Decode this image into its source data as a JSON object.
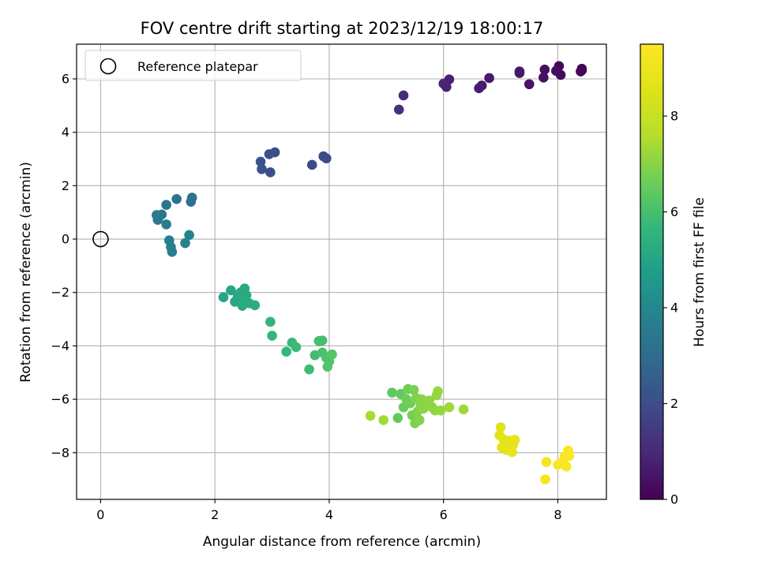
{
  "chart_data": {
    "type": "scatter",
    "title": "FOV centre drift starting at 2023/12/19 18:00:17",
    "xlabel": "Angular distance from reference (arcmin)",
    "ylabel": "Rotation from reference (arcmin)",
    "xlim": [
      -0.42,
      8.85
    ],
    "ylim": [
      -9.75,
      7.3
    ],
    "xticks": [
      0,
      2,
      4,
      6,
      8
    ],
    "yticks": [
      -8,
      -6,
      -4,
      -2,
      0,
      2,
      4,
      6
    ],
    "grid": true,
    "legend": {
      "position": "top-left",
      "entries": [
        "Reference platepar"
      ]
    },
    "reference_point": {
      "x": 0,
      "y": 0,
      "marker": "open-circle"
    },
    "colorbar": {
      "label": "Hours from first FF file",
      "range": [
        0,
        9.5
      ],
      "ticks": [
        0,
        2,
        4,
        6,
        8
      ],
      "colormap": "viridis"
    },
    "points": [
      {
        "x": 8.42,
        "y": 6.32,
        "t": 0.05
      },
      {
        "x": 8.42,
        "y": 6.38,
        "t": 0.1
      },
      {
        "x": 8.4,
        "y": 6.28,
        "t": 0.15
      },
      {
        "x": 8.02,
        "y": 6.48,
        "t": 0.2
      },
      {
        "x": 8.05,
        "y": 6.15,
        "t": 0.25
      },
      {
        "x": 7.97,
        "y": 6.3,
        "t": 0.3
      },
      {
        "x": 7.77,
        "y": 6.35,
        "t": 0.35
      },
      {
        "x": 7.75,
        "y": 6.05,
        "t": 0.4
      },
      {
        "x": 7.5,
        "y": 5.8,
        "t": 0.45
      },
      {
        "x": 7.33,
        "y": 6.22,
        "t": 0.5
      },
      {
        "x": 7.33,
        "y": 6.28,
        "t": 0.55
      },
      {
        "x": 6.8,
        "y": 6.03,
        "t": 0.6
      },
      {
        "x": 6.67,
        "y": 5.75,
        "t": 0.65
      },
      {
        "x": 6.62,
        "y": 5.65,
        "t": 0.7
      },
      {
        "x": 6.1,
        "y": 5.98,
        "t": 0.78
      },
      {
        "x": 6.05,
        "y": 5.7,
        "t": 0.85
      },
      {
        "x": 6.0,
        "y": 5.82,
        "t": 0.9
      },
      {
        "x": 5.3,
        "y": 5.38,
        "t": 1.1
      },
      {
        "x": 5.22,
        "y": 4.85,
        "t": 1.2
      },
      {
        "x": 3.95,
        "y": 3.02,
        "t": 1.85
      },
      {
        "x": 3.9,
        "y": 3.1,
        "t": 1.9
      },
      {
        "x": 3.7,
        "y": 2.78,
        "t": 1.95
      },
      {
        "x": 3.05,
        "y": 3.25,
        "t": 2.0
      },
      {
        "x": 2.95,
        "y": 3.18,
        "t": 2.05
      },
      {
        "x": 2.97,
        "y": 2.5,
        "t": 2.1
      },
      {
        "x": 2.82,
        "y": 2.62,
        "t": 2.15
      },
      {
        "x": 2.8,
        "y": 2.9,
        "t": 2.2
      },
      {
        "x": 1.6,
        "y": 1.55,
        "t": 3.2
      },
      {
        "x": 1.58,
        "y": 1.4,
        "t": 3.25
      },
      {
        "x": 1.33,
        "y": 1.5,
        "t": 3.3
      },
      {
        "x": 1.15,
        "y": 1.28,
        "t": 3.35
      },
      {
        "x": 1.07,
        "y": 0.92,
        "t": 3.4
      },
      {
        "x": 0.98,
        "y": 0.9,
        "t": 3.45
      },
      {
        "x": 1.0,
        "y": 0.72,
        "t": 3.5
      },
      {
        "x": 1.15,
        "y": 0.55,
        "t": 3.55
      },
      {
        "x": 1.2,
        "y": -0.05,
        "t": 3.6
      },
      {
        "x": 1.23,
        "y": -0.3,
        "t": 3.65
      },
      {
        "x": 1.25,
        "y": -0.48,
        "t": 3.7
      },
      {
        "x": 1.48,
        "y": -0.15,
        "t": 3.75
      },
      {
        "x": 1.55,
        "y": 0.15,
        "t": 3.8
      },
      {
        "x": 2.15,
        "y": -2.18,
        "t": 5.0
      },
      {
        "x": 2.28,
        "y": -1.92,
        "t": 5.05
      },
      {
        "x": 2.35,
        "y": -2.35,
        "t": 5.1
      },
      {
        "x": 2.4,
        "y": -2.15,
        "t": 5.12
      },
      {
        "x": 2.45,
        "y": -2.0,
        "t": 5.15
      },
      {
        "x": 2.5,
        "y": -2.3,
        "t": 5.18
      },
      {
        "x": 2.52,
        "y": -1.85,
        "t": 5.2
      },
      {
        "x": 2.55,
        "y": -2.1,
        "t": 5.22
      },
      {
        "x": 2.48,
        "y": -2.5,
        "t": 5.25
      },
      {
        "x": 2.6,
        "y": -2.4,
        "t": 5.28
      },
      {
        "x": 2.7,
        "y": -2.48,
        "t": 5.3
      },
      {
        "x": 2.97,
        "y": -3.1,
        "t": 5.6
      },
      {
        "x": 3.0,
        "y": -3.62,
        "t": 5.65
      },
      {
        "x": 3.25,
        "y": -4.22,
        "t": 5.7
      },
      {
        "x": 3.35,
        "y": -3.88,
        "t": 5.75
      },
      {
        "x": 3.42,
        "y": -4.05,
        "t": 5.8
      },
      {
        "x": 3.65,
        "y": -4.88,
        "t": 5.85
      },
      {
        "x": 3.75,
        "y": -4.35,
        "t": 5.9
      },
      {
        "x": 3.82,
        "y": -3.82,
        "t": 5.95
      },
      {
        "x": 3.88,
        "y": -3.8,
        "t": 6.0
      },
      {
        "x": 3.88,
        "y": -4.25,
        "t": 6.05
      },
      {
        "x": 3.95,
        "y": -4.45,
        "t": 6.1
      },
      {
        "x": 4.0,
        "y": -4.58,
        "t": 6.15
      },
      {
        "x": 3.97,
        "y": -4.78,
        "t": 6.2
      },
      {
        "x": 4.05,
        "y": -4.32,
        "t": 6.25
      },
      {
        "x": 5.1,
        "y": -5.75,
        "t": 6.4
      },
      {
        "x": 5.2,
        "y": -6.7,
        "t": 6.45
      },
      {
        "x": 5.25,
        "y": -5.8,
        "t": 6.5
      },
      {
        "x": 5.3,
        "y": -6.3,
        "t": 6.55
      },
      {
        "x": 5.35,
        "y": -6.0,
        "t": 6.6
      },
      {
        "x": 5.38,
        "y": -5.62,
        "t": 6.65
      },
      {
        "x": 5.42,
        "y": -6.15,
        "t": 6.7
      },
      {
        "x": 5.45,
        "y": -6.6,
        "t": 6.75
      },
      {
        "x": 5.48,
        "y": -5.65,
        "t": 6.8
      },
      {
        "x": 5.5,
        "y": -6.9,
        "t": 6.85
      },
      {
        "x": 5.52,
        "y": -5.95,
        "t": 6.88
      },
      {
        "x": 5.55,
        "y": -6.45,
        "t": 6.9
      },
      {
        "x": 5.58,
        "y": -6.78,
        "t": 6.93
      },
      {
        "x": 5.6,
        "y": -6.2,
        "t": 6.96
      },
      {
        "x": 5.62,
        "y": -6.0,
        "t": 7.0
      },
      {
        "x": 5.65,
        "y": -6.35,
        "t": 7.03
      },
      {
        "x": 5.7,
        "y": -6.25,
        "t": 7.05
      },
      {
        "x": 5.75,
        "y": -6.05,
        "t": 7.08
      },
      {
        "x": 5.8,
        "y": -6.3,
        "t": 7.1
      },
      {
        "x": 5.85,
        "y": -6.42,
        "t": 7.12
      },
      {
        "x": 5.88,
        "y": -5.85,
        "t": 7.15
      },
      {
        "x": 5.9,
        "y": -5.7,
        "t": 7.18
      },
      {
        "x": 5.95,
        "y": -6.42,
        "t": 7.2
      },
      {
        "x": 6.1,
        "y": -6.3,
        "t": 7.25
      },
      {
        "x": 6.35,
        "y": -6.38,
        "t": 7.3
      },
      {
        "x": 4.95,
        "y": -6.78,
        "t": 7.35
      },
      {
        "x": 4.72,
        "y": -6.62,
        "t": 7.4
      },
      {
        "x": 7.0,
        "y": -7.05,
        "t": 8.6
      },
      {
        "x": 6.98,
        "y": -7.35,
        "t": 8.62
      },
      {
        "x": 7.02,
        "y": -7.8,
        "t": 8.65
      },
      {
        "x": 7.05,
        "y": -7.5,
        "t": 8.68
      },
      {
        "x": 7.1,
        "y": -7.9,
        "t": 8.7
      },
      {
        "x": 7.12,
        "y": -7.65,
        "t": 8.72
      },
      {
        "x": 7.15,
        "y": -7.55,
        "t": 8.75
      },
      {
        "x": 7.18,
        "y": -7.85,
        "t": 8.78
      },
      {
        "x": 7.2,
        "y": -7.98,
        "t": 8.8
      },
      {
        "x": 7.22,
        "y": -7.7,
        "t": 8.82
      },
      {
        "x": 7.25,
        "y": -7.52,
        "t": 8.85
      },
      {
        "x": 7.8,
        "y": -8.35,
        "t": 9.2
      },
      {
        "x": 7.78,
        "y": -9.0,
        "t": 9.25
      },
      {
        "x": 8.0,
        "y": -8.45,
        "t": 9.3
      },
      {
        "x": 8.05,
        "y": -8.4,
        "t": 9.32
      },
      {
        "x": 8.1,
        "y": -8.3,
        "t": 9.35
      },
      {
        "x": 8.12,
        "y": -8.15,
        "t": 9.38
      },
      {
        "x": 8.15,
        "y": -8.52,
        "t": 9.4
      },
      {
        "x": 8.18,
        "y": -7.92,
        "t": 9.42
      },
      {
        "x": 8.2,
        "y": -8.12,
        "t": 9.45
      }
    ]
  }
}
